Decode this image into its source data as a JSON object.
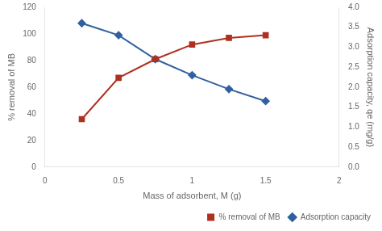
{
  "chart_data": {
    "type": "line",
    "xlabel": "Mass of adsorbent, M (g)",
    "ylabel": "% removal of MB",
    "y2label": "Adsorption capacity, qe (mg/g)",
    "x": [
      0.25,
      0.5,
      0.75,
      1.0,
      1.25,
      1.5
    ],
    "series": [
      {
        "name": "% removal of MB",
        "color": "#b03020",
        "marker": "square",
        "values": [
          36,
          67,
          81,
          92,
          97,
          99
        ]
      },
      {
        "name": "Adsorption capacity",
        "color": "#3060a0",
        "marker": "diamond",
        "axis": "y2",
        "values": [
          3.6,
          3.3,
          2.7,
          2.3,
          1.95,
          1.65
        ]
      }
    ],
    "xlim": [
      0,
      2
    ],
    "xticks": [
      0,
      0.5,
      1,
      1.5,
      2
    ],
    "ylim": [
      0,
      120
    ],
    "yticks": [
      0,
      20,
      40,
      60,
      80,
      100,
      120
    ],
    "y2lim": [
      0,
      4
    ],
    "y2ticks": [
      {
        "value": 0,
        "label": "0.0"
      },
      {
        "value": 0.5,
        "label": "0.5"
      },
      {
        "value": 1.0,
        "label": "1.0"
      },
      {
        "value": 1.5,
        "label": "1.5"
      },
      {
        "value": 2.0,
        "label": "2.0"
      },
      {
        "value": 2.5,
        "label": "2.5"
      },
      {
        "value": 3.0,
        "label": "3.0"
      },
      {
        "value": 3.5,
        "label": "3.5"
      },
      {
        "value": 4.0,
        "label": "4.0"
      }
    ],
    "grid": false,
    "legend": "lower right"
  }
}
